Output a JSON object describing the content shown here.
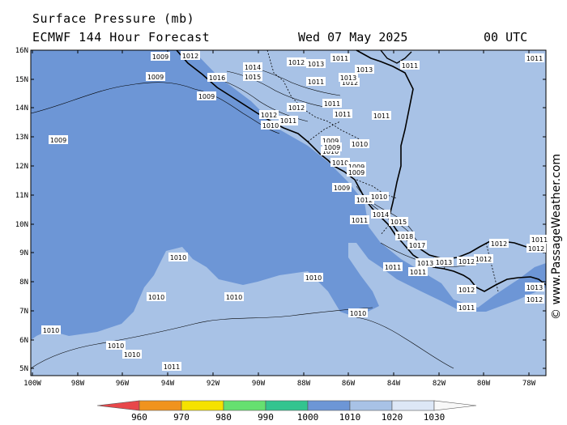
{
  "header": {
    "title": "Surface Pressure (mb)",
    "subtitle": "ECMWF 144 Hour Forecast",
    "datetime": "Wed 07 May 2025",
    "utc": "00 UTC"
  },
  "lat_labels": [
    "16N",
    "15N",
    "14N",
    "13N",
    "12N",
    "11N",
    "10N",
    "9N",
    "8N",
    "7N",
    "6N",
    "5N"
  ],
  "lon_labels": [
    "100W",
    "98W",
    "96W",
    "94W",
    "92W",
    "90W",
    "88W",
    "86W",
    "84W",
    "82W",
    "80W",
    "78W"
  ],
  "colorbar": {
    "values": [
      "960",
      "970",
      "980",
      "990",
      "1000",
      "1010",
      "1020",
      "1030"
    ],
    "colors": [
      "#e8474a",
      "#f0931e",
      "#f5e200",
      "#66e070",
      "#33c48f",
      "#6d96d6",
      "#a8c2e6",
      "#dde7f6",
      "#f8f8f8"
    ]
  },
  "fill_colors": {
    "ocean_1000_1010": "#6d96d6",
    "zone_1010_1020": "#a8c2e6"
  },
  "isobar_labels": [
    {
      "text": "1009"
    },
    {
      "text": "1009"
    },
    {
      "text": "1009"
    },
    {
      "text": "1009"
    },
    {
      "text": "1012"
    },
    {
      "text": "1014"
    },
    {
      "text": "1015"
    },
    {
      "text": "1016"
    },
    {
      "text": "1013"
    },
    {
      "text": "1012"
    },
    {
      "text": "1011"
    },
    {
      "text": "1011"
    },
    {
      "text": "1013"
    },
    {
      "text": "1012"
    },
    {
      "text": "1013"
    },
    {
      "text": "1011"
    },
    {
      "text": "1011"
    },
    {
      "text": "1012"
    },
    {
      "text": "1012"
    },
    {
      "text": "1011"
    },
    {
      "text": "1010"
    },
    {
      "text": "1011"
    },
    {
      "text": "1009"
    },
    {
      "text": "1010"
    },
    {
      "text": "1009"
    },
    {
      "text": "1010"
    },
    {
      "text": "1010"
    },
    {
      "text": "1009"
    },
    {
      "text": "1009"
    },
    {
      "text": "1009"
    },
    {
      "text": "1012"
    },
    {
      "text": "1010"
    },
    {
      "text": "1014"
    },
    {
      "text": "1011"
    },
    {
      "text": "1015"
    },
    {
      "text": "1018"
    },
    {
      "text": "1017"
    },
    {
      "text": "1013"
    },
    {
      "text": "1011"
    },
    {
      "text": "1013"
    },
    {
      "text": "1012"
    },
    {
      "text": "1012"
    },
    {
      "text": "1012"
    },
    {
      "text": "1011"
    },
    {
      "text": "1012"
    },
    {
      "text": "1011"
    },
    {
      "text": "1013"
    },
    {
      "text": "1012"
    },
    {
      "text": "1012"
    },
    {
      "text": "1011"
    },
    {
      "text": "1011"
    },
    {
      "text": "1010"
    },
    {
      "text": "1010"
    },
    {
      "text": "1010"
    },
    {
      "text": "1010"
    },
    {
      "text": "1010"
    },
    {
      "text": "1010"
    },
    {
      "text": "1010"
    },
    {
      "text": "1010"
    },
    {
      "text": "1011"
    },
    {
      "text": "1011"
    },
    {
      "text": "1011"
    }
  ],
  "watermark": "© www.PassageWeather.com"
}
